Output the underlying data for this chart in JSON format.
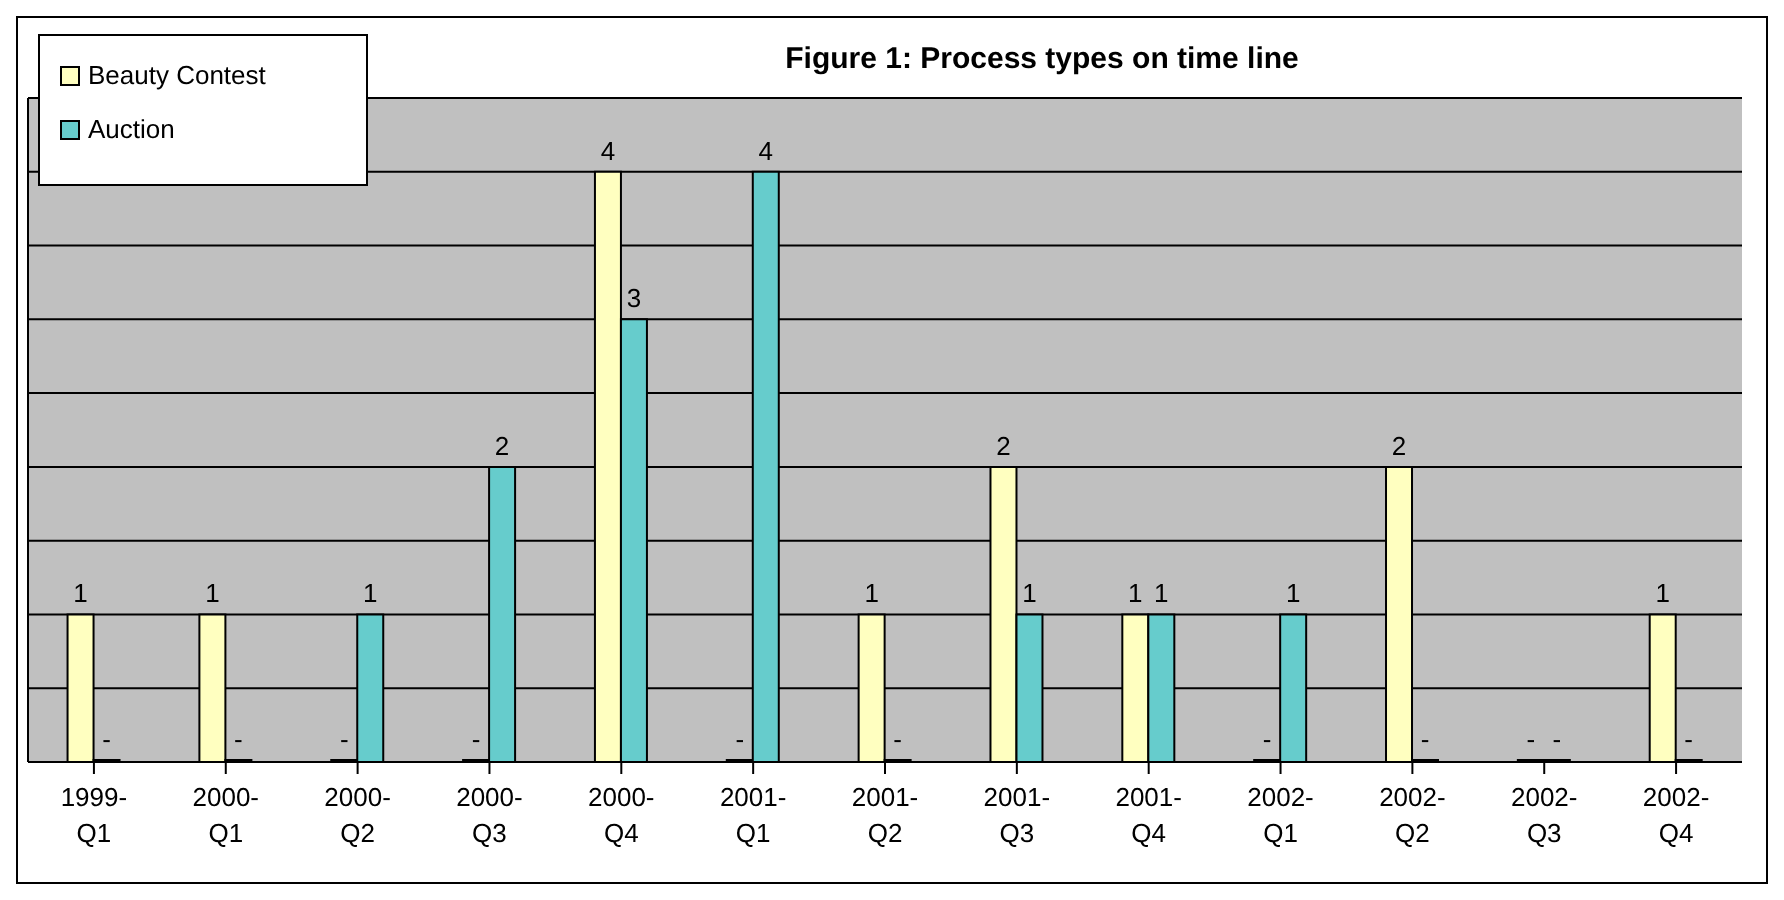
{
  "chart_data": {
    "type": "bar",
    "title": "Figure 1: Process types on time line",
    "categories": [
      "1999-Q1",
      "2000-Q1",
      "2000-Q2",
      "2000-Q3",
      "2000-Q4",
      "2001-Q1",
      "2001-Q2",
      "2001-Q3",
      "2001-Q4",
      "2002-Q1",
      "2002-Q2",
      "2002-Q3",
      "2002-Q4"
    ],
    "series": [
      {
        "name": "Beauty Contest",
        "color": "#ffffc0",
        "values": [
          1,
          1,
          0,
          0,
          4,
          0,
          1,
          2,
          1,
          0,
          2,
          0,
          1
        ],
        "value_labels": [
          "1",
          "1",
          "-",
          "-",
          "4",
          "-",
          "1",
          "2",
          "1",
          "-",
          "2",
          "-",
          "1"
        ]
      },
      {
        "name": "Auction",
        "color": "#66cccc",
        "values": [
          0,
          0,
          1,
          2,
          3,
          4,
          0,
          1,
          1,
          1,
          0,
          0,
          0
        ],
        "value_labels": [
          "-",
          "-",
          "1",
          "2",
          "3",
          "4",
          "-",
          "1",
          "1",
          "1",
          "-",
          "-",
          "-"
        ]
      }
    ],
    "ylim": [
      0,
      4.5
    ],
    "yticks": [
      {
        "value": 0,
        "label": null
      },
      {
        "value": 0.5,
        "label": null
      },
      {
        "value": 1,
        "label": null
      },
      {
        "value": 1.5,
        "label": null
      },
      {
        "value": 2,
        "label": null
      },
      {
        "value": 2.5,
        "label": null
      },
      {
        "value": 3,
        "label": null
      },
      {
        "value": 3.5,
        "label": null
      },
      {
        "value": 4,
        "label": null
      },
      {
        "value": 4.5,
        "label": null
      }
    ],
    "tick_labels": "x",
    "grid": "y",
    "legend": "top left"
  }
}
